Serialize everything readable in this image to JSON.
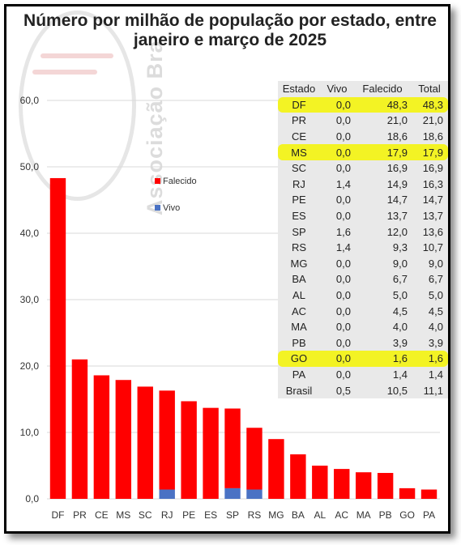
{
  "title": {
    "line1": "Número por milhão de população por estado, entre",
    "line2": "janeiro e março de 2025"
  },
  "watermark": "Associação Bra",
  "colors": {
    "falecido": "#ff0000",
    "vivo": "#4a72c4",
    "highlight": "#f3f324",
    "grid": "#d9d9d9"
  },
  "legend": {
    "falecido": "Falecido",
    "vivo": "Vivo"
  },
  "table": {
    "headers": [
      "Estado",
      "Vivo",
      "Falecido",
      "Total"
    ],
    "rows": [
      {
        "estado": "DF",
        "vivo": "0,0",
        "falecido": "48,3",
        "total": "48,3",
        "highlight": true
      },
      {
        "estado": "PR",
        "vivo": "0,0",
        "falecido": "21,0",
        "total": "21,0",
        "highlight": false
      },
      {
        "estado": "CE",
        "vivo": "0,0",
        "falecido": "18,6",
        "total": "18,6",
        "highlight": false
      },
      {
        "estado": "MS",
        "vivo": "0,0",
        "falecido": "17,9",
        "total": "17,9",
        "highlight": true
      },
      {
        "estado": "SC",
        "vivo": "0,0",
        "falecido": "16,9",
        "total": "16,9",
        "highlight": false
      },
      {
        "estado": "RJ",
        "vivo": "1,4",
        "falecido": "14,9",
        "total": "16,3",
        "highlight": false
      },
      {
        "estado": "PE",
        "vivo": "0,0",
        "falecido": "14,7",
        "total": "14,7",
        "highlight": false
      },
      {
        "estado": "ES",
        "vivo": "0,0",
        "falecido": "13,7",
        "total": "13,7",
        "highlight": false
      },
      {
        "estado": "SP",
        "vivo": "1,6",
        "falecido": "12,0",
        "total": "13,6",
        "highlight": false
      },
      {
        "estado": "RS",
        "vivo": "1,4",
        "falecido": "9,3",
        "total": "10,7",
        "highlight": false
      },
      {
        "estado": "MG",
        "vivo": "0,0",
        "falecido": "9,0",
        "total": "9,0",
        "highlight": false
      },
      {
        "estado": "BA",
        "vivo": "0,0",
        "falecido": "6,7",
        "total": "6,7",
        "highlight": false
      },
      {
        "estado": "AL",
        "vivo": "0,0",
        "falecido": "5,0",
        "total": "5,0",
        "highlight": false
      },
      {
        "estado": "AC",
        "vivo": "0,0",
        "falecido": "4,5",
        "total": "4,5",
        "highlight": false
      },
      {
        "estado": "MA",
        "vivo": "0,0",
        "falecido": "4,0",
        "total": "4,0",
        "highlight": false
      },
      {
        "estado": "PB",
        "vivo": "0,0",
        "falecido": "3,9",
        "total": "3,9",
        "highlight": false
      },
      {
        "estado": "GO",
        "vivo": "0,0",
        "falecido": "1,6",
        "total": "1,6",
        "highlight": true
      },
      {
        "estado": "PA",
        "vivo": "0,0",
        "falecido": "1,4",
        "total": "1,4",
        "highlight": false
      },
      {
        "estado": "Brasil",
        "vivo": "0,5",
        "falecido": "10,5",
        "total": "11,1",
        "highlight": false
      }
    ]
  },
  "chart_data": {
    "type": "bar",
    "stacked": true,
    "categories": [
      "DF",
      "PR",
      "CE",
      "MS",
      "SC",
      "RJ",
      "PE",
      "ES",
      "SP",
      "RS",
      "MG",
      "BA",
      "AL",
      "AC",
      "MA",
      "PB",
      "GO",
      "PA"
    ],
    "series": [
      {
        "name": "Vivo",
        "values": [
          0,
          0,
          0,
          0,
          0,
          1.4,
          0,
          0,
          1.6,
          1.4,
          0,
          0,
          0,
          0,
          0,
          0,
          0,
          0
        ]
      },
      {
        "name": "Falecido",
        "values": [
          48.3,
          21.0,
          18.6,
          17.9,
          16.9,
          14.9,
          14.7,
          13.7,
          12.0,
          9.3,
          9.0,
          6.7,
          5.0,
          4.5,
          4.0,
          3.9,
          1.6,
          1.4
        ]
      }
    ],
    "ylim": [
      0,
      60
    ],
    "yticks": [
      0,
      10,
      20,
      30,
      40,
      50,
      60
    ],
    "ytick_labels": [
      "0,0",
      "10,0",
      "20,0",
      "30,0",
      "40,0",
      "50,0",
      "60,0"
    ],
    "grid": true,
    "legend_position": "upper-middle"
  }
}
